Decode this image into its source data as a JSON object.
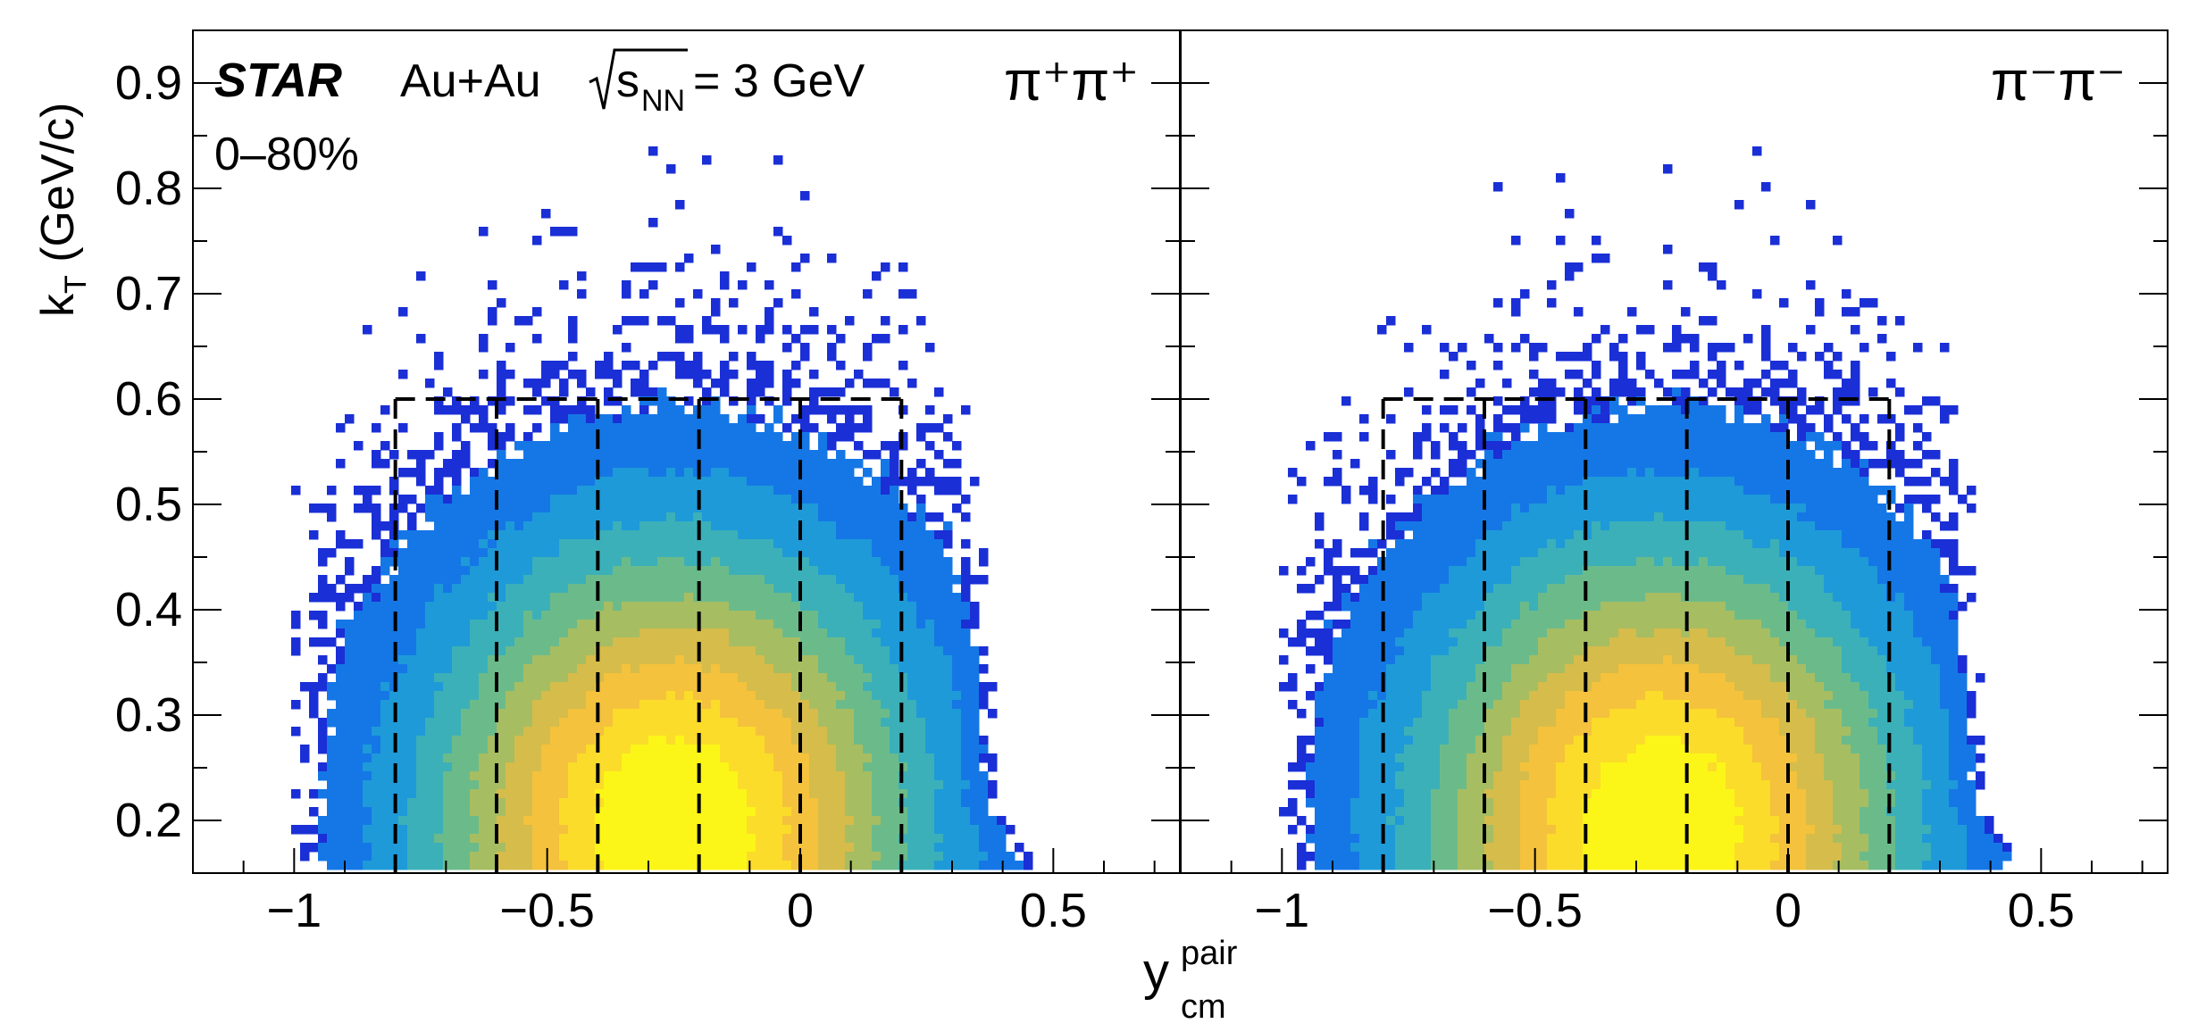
{
  "chart_data": {
    "type": "heatmap",
    "colormap": [
      "#1a2fd6",
      "#1577e6",
      "#1e9ad8",
      "#3cb0b8",
      "#6bbb8a",
      "#a7bd62",
      "#d6bc4a",
      "#f4c23c",
      "#fbdc2a",
      "#fbf617"
    ],
    "xlabel": "y",
    "xlabel_sup": "pair",
    "xlabel_sub": "cm",
    "ylabel": "k",
    "ylabel_sub": "T",
    "ylabel_unit": " (GeV/c)",
    "xlim": [
      -1.2,
      0.75
    ],
    "ylim": [
      0.15,
      0.95
    ],
    "xticks": [
      -1,
      -0.5,
      0,
      0.5
    ],
    "xtick_labels": [
      "−1",
      "−0.5",
      "0",
      "0.5"
    ],
    "yticks": [
      0.2,
      0.3,
      0.4,
      0.5,
      0.6,
      0.7,
      0.8,
      0.9
    ],
    "ytick_labels": [
      "0.2",
      "0.3",
      "0.4",
      "0.5",
      "0.6",
      "0.7",
      "0.8",
      "0.9"
    ],
    "annotation": {
      "experiment": "STAR",
      "system": "Au+Au",
      "energy_sym": "s",
      "energy_sub": "NN",
      "energy_val": "= 3 GeV",
      "centrality": "0–80%"
    },
    "panels": [
      {
        "label": "π⁺π⁺",
        "mode": "positive",
        "distribution": {
          "y_min": -1.0,
          "y_max": 0.37,
          "y_tail_max": 0.5,
          "kt_min": 0.15,
          "kt_max": 0.85,
          "peak_y": -0.25,
          "peak_kt": 0.19
        }
      },
      {
        "label": "π⁻π⁻",
        "mode": "negative",
        "distribution": {
          "y_min": -1.0,
          "y_max": 0.37,
          "y_tail_max": 0.5,
          "kt_min": 0.15,
          "kt_max": 0.85,
          "peak_y": -0.25,
          "peak_kt": 0.19
        }
      }
    ],
    "bins": {
      "y_edges": [
        -0.8,
        -0.6,
        -0.4,
        -0.2,
        0.0,
        0.2
      ],
      "kt_range": [
        0.15,
        0.6
      ],
      "style": "dashed"
    }
  }
}
